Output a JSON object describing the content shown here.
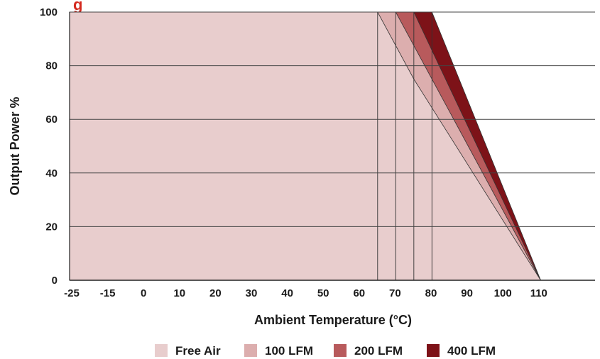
{
  "chart_data": {
    "type": "area",
    "title_fragment": "g",
    "xlabel": "Ambient Temperature (°C)",
    "ylabel": "Output Power %",
    "x_ticks": [
      -25,
      -15,
      0,
      10,
      20,
      30,
      40,
      50,
      60,
      70,
      80,
      90,
      100,
      110
    ],
    "y_ticks": [
      0,
      20,
      40,
      60,
      80,
      100
    ],
    "xlim": [
      -25,
      120
    ],
    "ylim": [
      0,
      100
    ],
    "grid": "horizontal",
    "legend_position": "bottom",
    "series": [
      {
        "name": "Free Air",
        "color": "#e8cdcd",
        "x": [
          -25,
          60,
          70,
          105
        ],
        "y": [
          100,
          100,
          75,
          0
        ]
      },
      {
        "name": "100 LFM",
        "color": "#dcaeae",
        "x": [
          -25,
          65,
          105
        ],
        "y": [
          100,
          100,
          0
        ]
      },
      {
        "name": "200 LFM",
        "color": "#b85a5c",
        "x": [
          -25,
          70,
          105
        ],
        "y": [
          100,
          100,
          0
        ]
      },
      {
        "name": "400 LFM",
        "color": "#7d1218",
        "x": [
          -25,
          75,
          105
        ],
        "y": [
          100,
          100,
          0
        ]
      }
    ],
    "title_color": "#d42a1f"
  }
}
